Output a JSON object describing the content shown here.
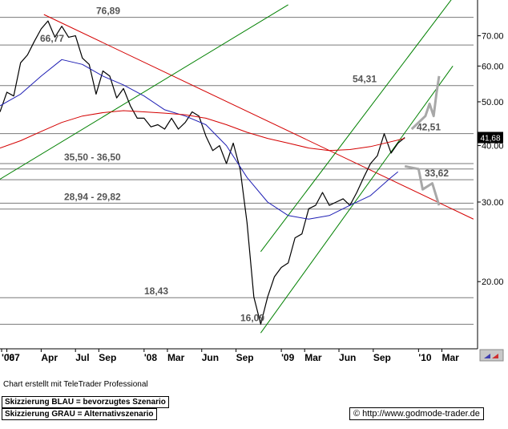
{
  "footer": {
    "credit": "Chart erstellt mit TeleTrader Professional",
    "scenario_blue": "Skizzierung BLAU = bevorzugtes Szenario",
    "scenario_gray": "Skizzierung GRAU = Alternativszenario",
    "copyright": "© http://www.godmode-trader.de"
  },
  "colors": {
    "price": "#000000",
    "ma_short": "#1f1fb4",
    "ma_long": "#d40000",
    "resistance_line": "#d40000",
    "channel": "#008000",
    "level": "#7a7a7a",
    "scenario_gray": "#a8a8a8",
    "price_tag_bg": "#000000"
  },
  "chart_data": {
    "type": "line",
    "yscale": "log",
    "ylim": [
      14.2,
      84
    ],
    "yticks": [
      20,
      30,
      40,
      50,
      60,
      70
    ],
    "xticks": [
      {
        "label": "'06",
        "x": 2006.95
      },
      {
        "label": "'07",
        "x": 2007.0
      },
      {
        "label": "Apr",
        "x": 2007.25
      },
      {
        "label": "Jul",
        "x": 2007.5
      },
      {
        "label": "Sep",
        "x": 2007.67
      },
      {
        "label": "'08",
        "x": 2008.0
      },
      {
        "label": "Mar",
        "x": 2008.17
      },
      {
        "label": "Jun",
        "x": 2008.42
      },
      {
        "label": "Sep",
        "x": 2008.67
      },
      {
        "label": "'09",
        "x": 2009.0
      },
      {
        "label": "Mar",
        "x": 2009.17
      },
      {
        "label": "Jun",
        "x": 2009.42
      },
      {
        "label": "Sep",
        "x": 2009.67
      },
      {
        "label": "'10",
        "x": 2010.0
      },
      {
        "label": "Mar",
        "x": 2010.17
      }
    ],
    "last_price_label": "41,68",
    "last_price": 41.68,
    "levels": [
      {
        "value": 76.89,
        "label": "76,89"
      },
      {
        "value": 66.77,
        "label": "66,77"
      },
      {
        "value": 54.31,
        "label": "54,31"
      },
      {
        "value": 42.51,
        "label": "42,51"
      },
      {
        "value": 36.5,
        "label": "35,50 - 36,50"
      },
      {
        "value": 35.5,
        "label": ""
      },
      {
        "value": 33.62,
        "label": "33,62"
      },
      {
        "value": 29.82,
        "label": "28,94 - 29,82"
      },
      {
        "value": 28.94,
        "label": ""
      },
      {
        "value": 18.43,
        "label": "18,43"
      },
      {
        "value": 16.09,
        "label": "16,09"
      }
    ],
    "series": [
      {
        "kind": "price",
        "points": [
          [
            2006.95,
            47.5
          ],
          [
            2007.0,
            52.5
          ],
          [
            2007.05,
            51.5
          ],
          [
            2007.1,
            61.0
          ],
          [
            2007.15,
            63.5
          ],
          [
            2007.2,
            68.0
          ],
          [
            2007.25,
            72.5
          ],
          [
            2007.3,
            75.5
          ],
          [
            2007.35,
            69.5
          ],
          [
            2007.4,
            73.5
          ],
          [
            2007.45,
            69.5
          ],
          [
            2007.5,
            70.0
          ],
          [
            2007.55,
            62.5
          ],
          [
            2007.6,
            60.5
          ],
          [
            2007.65,
            52.0
          ],
          [
            2007.7,
            58.5
          ],
          [
            2007.75,
            57.0
          ],
          [
            2007.8,
            51.0
          ],
          [
            2007.85,
            53.5
          ],
          [
            2007.9,
            49.0
          ],
          [
            2007.95,
            46.0
          ],
          [
            2008.0,
            46.0
          ],
          [
            2008.05,
            44.0
          ],
          [
            2008.1,
            44.5
          ],
          [
            2008.15,
            43.5
          ],
          [
            2008.2,
            46.0
          ],
          [
            2008.25,
            43.5
          ],
          [
            2008.3,
            45.0
          ],
          [
            2008.35,
            47.5
          ],
          [
            2008.4,
            46.5
          ],
          [
            2008.45,
            42.0
          ],
          [
            2008.5,
            39.0
          ],
          [
            2008.55,
            40.0
          ],
          [
            2008.6,
            36.5
          ],
          [
            2008.65,
            40.5
          ],
          [
            2008.7,
            35.5
          ],
          [
            2008.75,
            27.0
          ],
          [
            2008.8,
            18.5
          ],
          [
            2008.85,
            16.1
          ],
          [
            2008.9,
            18.5
          ],
          [
            2008.95,
            20.5
          ],
          [
            2009.0,
            21.5
          ],
          [
            2009.05,
            22.0
          ],
          [
            2009.1,
            25.0
          ],
          [
            2009.15,
            25.5
          ],
          [
            2009.2,
            29.0
          ],
          [
            2009.25,
            29.5
          ],
          [
            2009.3,
            31.5
          ],
          [
            2009.35,
            29.5
          ],
          [
            2009.4,
            30.0
          ],
          [
            2009.45,
            30.5
          ],
          [
            2009.5,
            29.5
          ],
          [
            2009.55,
            31.5
          ],
          [
            2009.6,
            34.0
          ],
          [
            2009.65,
            36.5
          ],
          [
            2009.7,
            38.0
          ],
          [
            2009.75,
            42.5
          ],
          [
            2009.8,
            38.5
          ],
          [
            2009.85,
            40.5
          ],
          [
            2009.9,
            41.68
          ]
        ]
      },
      {
        "kind": "ma_short",
        "points": [
          [
            2006.95,
            49.0
          ],
          [
            2007.1,
            52.0
          ],
          [
            2007.25,
            57.0
          ],
          [
            2007.4,
            62.0
          ],
          [
            2007.55,
            60.5
          ],
          [
            2007.7,
            57.0
          ],
          [
            2007.85,
            54.5
          ],
          [
            2008.0,
            51.5
          ],
          [
            2008.15,
            48.0
          ],
          [
            2008.3,
            46.5
          ],
          [
            2008.45,
            44.5
          ],
          [
            2008.6,
            40.0
          ],
          [
            2008.75,
            34.0
          ],
          [
            2008.9,
            30.0
          ],
          [
            2009.05,
            28.0
          ],
          [
            2009.2,
            27.5
          ],
          [
            2009.35,
            28.0
          ],
          [
            2009.5,
            29.5
          ],
          [
            2009.65,
            31.0
          ],
          [
            2009.8,
            34.0
          ],
          [
            2009.85,
            35.0
          ]
        ]
      },
      {
        "kind": "ma_long",
        "points": [
          [
            2006.95,
            39.5
          ],
          [
            2007.1,
            41.0
          ],
          [
            2007.25,
            43.0
          ],
          [
            2007.4,
            45.0
          ],
          [
            2007.55,
            46.5
          ],
          [
            2007.7,
            47.3
          ],
          [
            2007.85,
            47.8
          ],
          [
            2008.0,
            47.5
          ],
          [
            2008.15,
            47.2
          ],
          [
            2008.3,
            46.8
          ],
          [
            2008.45,
            46.0
          ],
          [
            2008.6,
            44.5
          ],
          [
            2008.75,
            42.8
          ],
          [
            2008.9,
            41.5
          ],
          [
            2009.05,
            40.5
          ],
          [
            2009.2,
            39.5
          ],
          [
            2009.35,
            39.0
          ],
          [
            2009.5,
            39.2
          ],
          [
            2009.65,
            39.8
          ],
          [
            2009.8,
            40.8
          ],
          [
            2009.9,
            41.5
          ]
        ]
      },
      {
        "kind": "scenario_gray",
        "points": [
          [
            2009.95,
            43.5
          ],
          [
            2010.05,
            46.5
          ],
          [
            2010.08,
            49.5
          ],
          [
            2010.11,
            46.5
          ],
          [
            2010.13,
            52.0
          ],
          [
            2010.15,
            57.0
          ]
        ]
      },
      {
        "kind": "scenario_gray",
        "points": [
          [
            2009.9,
            36.0
          ],
          [
            2010.0,
            35.5
          ],
          [
            2010.03,
            32.0
          ],
          [
            2010.1,
            33.0
          ],
          [
            2010.15,
            29.5
          ]
        ]
      }
    ],
    "trendlines": [
      {
        "kind": "resistance_line",
        "from": [
          2007.27,
          78.0
        ],
        "to": [
          2010.4,
          27.5
        ]
      },
      {
        "kind": "channel",
        "from": [
          2006.9,
          33.0
        ],
        "to": [
          2009.05,
          82.0
        ]
      },
      {
        "kind": "channel",
        "from": [
          2008.85,
          15.4
        ],
        "to": [
          2010.25,
          60.0
        ]
      },
      {
        "kind": "channel",
        "from": [
          2008.85,
          23.3
        ],
        "to": [
          2010.25,
          85.0
        ]
      }
    ]
  }
}
